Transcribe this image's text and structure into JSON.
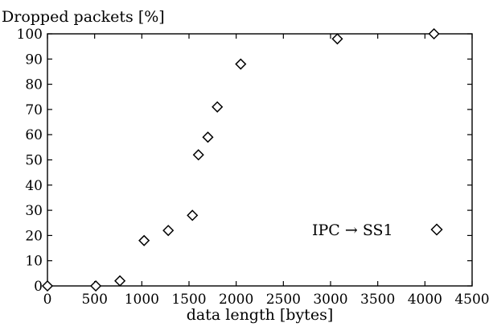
{
  "chart_data": {
    "type": "scatter",
    "title": "",
    "ylabel": "Dropped packets [%]",
    "xlabel": "data length [bytes]",
    "xlim": [
      0,
      4500
    ],
    "ylim": [
      0,
      100
    ],
    "x_ticks": [
      "0",
      "500",
      "1000",
      "1500",
      "2000",
      "2500",
      "3000",
      "3500",
      "4000",
      "4500"
    ],
    "y_ticks": [
      "0",
      "10",
      "20",
      "30",
      "40",
      "50",
      "60",
      "70",
      "80",
      "90",
      "100"
    ],
    "grid": false,
    "legend_position": "right",
    "series": [
      {
        "name": "IPC → SS1",
        "marker": "diamond",
        "points": [
          {
            "x": 0,
            "y": 0
          },
          {
            "x": 512,
            "y": 0
          },
          {
            "x": 768,
            "y": 2
          },
          {
            "x": 1024,
            "y": 18
          },
          {
            "x": 1280,
            "y": 22
          },
          {
            "x": 1536,
            "y": 28
          },
          {
            "x": 1600,
            "y": 52
          },
          {
            "x": 1700,
            "y": 59
          },
          {
            "x": 1800,
            "y": 71
          },
          {
            "x": 2048,
            "y": 88
          },
          {
            "x": 3072,
            "y": 98
          },
          {
            "x": 4096,
            "y": 100
          }
        ]
      }
    ]
  }
}
